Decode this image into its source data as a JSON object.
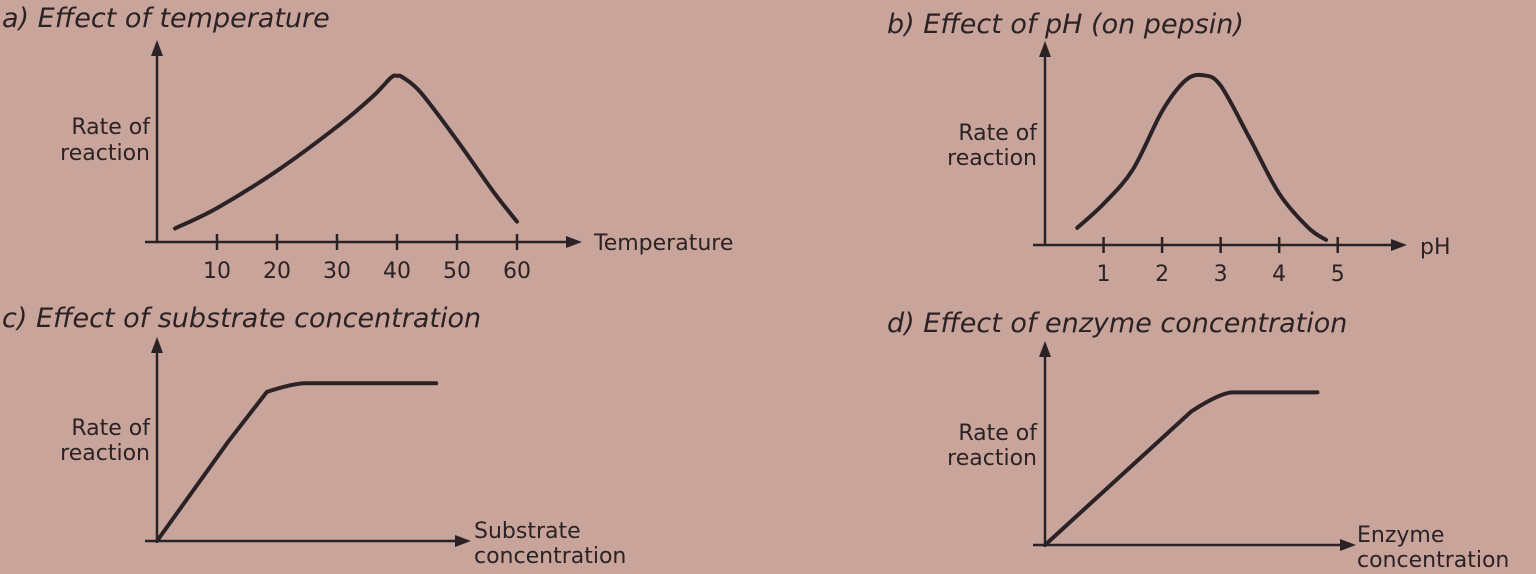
{
  "chart_data": [
    {
      "type": "line",
      "title": "a) Effect of temperature",
      "xlabel": "Temperature",
      "ylabel": [
        "Rate of",
        "reaction"
      ],
      "xticks": [
        10,
        20,
        30,
        40,
        50,
        60
      ],
      "xlim": [
        0,
        63
      ],
      "ylim": [
        0,
        1.05
      ],
      "series": [
        {
          "x": [
            3,
            10,
            20,
            30,
            36,
            39,
            40,
            41,
            44,
            50,
            56,
            60
          ],
          "y": [
            0.08,
            0.2,
            0.42,
            0.68,
            0.86,
            0.97,
            0.98,
            0.97,
            0.88,
            0.6,
            0.3,
            0.12
          ]
        }
      ]
    },
    {
      "type": "line",
      "title": "b) Effect of pH (on pepsin)",
      "xlabel": "pH",
      "ylabel": [
        "Rate of",
        "reaction"
      ],
      "xticks": [
        1,
        2,
        3,
        4,
        5
      ],
      "xlim": [
        0,
        5.5
      ],
      "ylim": [
        0,
        1.05
      ],
      "series": [
        {
          "x": [
            0.55,
            1,
            1.5,
            2,
            2.4,
            2.7,
            3,
            3.5,
            4,
            4.5,
            4.8
          ],
          "y": [
            0.1,
            0.24,
            0.44,
            0.78,
            0.96,
            0.99,
            0.93,
            0.62,
            0.3,
            0.1,
            0.03
          ]
        }
      ]
    },
    {
      "type": "line",
      "title": "c) Effect of substrate concentration",
      "xlabel": [
        "Substrate",
        "concentration"
      ],
      "ylabel": [
        "Rate of",
        "reaction"
      ],
      "xticks": [],
      "xlim": [
        0,
        1
      ],
      "ylim": [
        0,
        1.05
      ],
      "series": [
        {
          "x": [
            0,
            0.24,
            0.37,
            0.46,
            0.94
          ],
          "y": [
            0,
            0.58,
            0.87,
            0.92,
            0.92
          ]
        }
      ]
    },
    {
      "type": "line",
      "title": "d) Effect of enzyme concentration",
      "xlabel": [
        "Enzyme",
        "concentration"
      ],
      "ylabel": [
        "Rate of",
        "reaction"
      ],
      "xticks": [],
      "xlim": [
        0,
        1
      ],
      "ylim": [
        0,
        1.05
      ],
      "series": [
        {
          "x": [
            0,
            0.5,
            0.6,
            0.93
          ],
          "y": [
            0,
            0.78,
            0.89,
            0.89
          ]
        }
      ]
    }
  ]
}
